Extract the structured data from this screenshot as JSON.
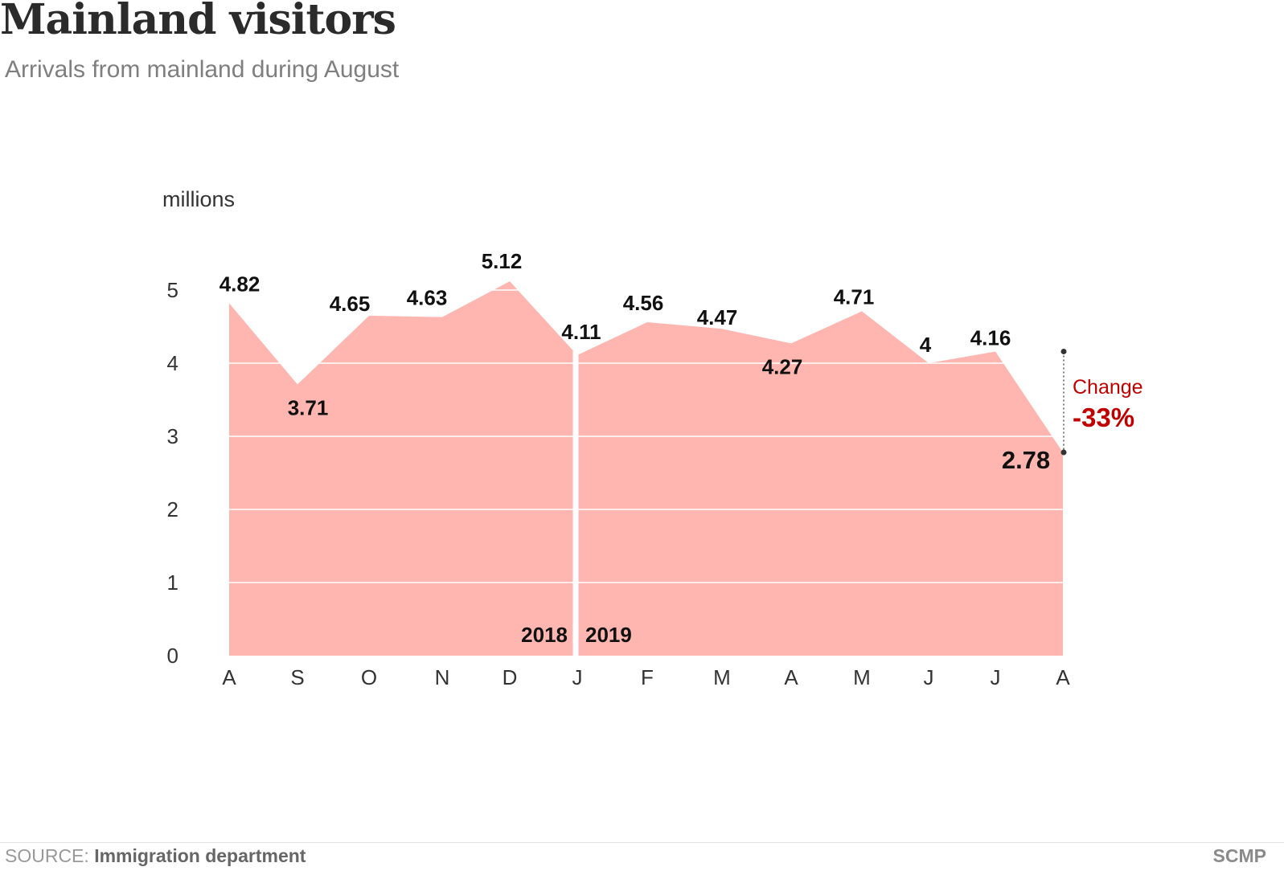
{
  "header": {
    "title": "Mainland visitors",
    "subtitle": "Arrivals from mainland during August"
  },
  "footer": {
    "source_label": "SOURCE:",
    "source_name": "Immigration department",
    "brand": "SCMP"
  },
  "colors": {
    "area_fill": "#ffb6b0",
    "grid": "#ffffff",
    "value_label": "#111111",
    "axis_text": "#333333",
    "change_color": "#c00000"
  },
  "chart_data": {
    "type": "area",
    "ylabel": "millions",
    "ylim": [
      0,
      5
    ],
    "yticks": [
      0,
      1,
      2,
      3,
      4,
      5
    ],
    "grid": true,
    "categories": [
      "A",
      "S",
      "O",
      "N",
      "D",
      "J",
      "F",
      "M",
      "A",
      "M",
      "J",
      "J",
      "A"
    ],
    "series": [
      {
        "values": [
          4.82,
          3.71,
          4.65,
          4.63,
          5.12,
          4.11,
          4.56,
          4.47,
          4.27,
          4.71,
          4,
          4.16,
          2.78
        ],
        "labels": [
          "4.82",
          "3.71",
          "4.65",
          "4.63",
          "5.12",
          "4.11",
          "4.56",
          "4.47",
          "4.27",
          "4.71",
          "4",
          "4.16",
          "2.78"
        ]
      }
    ],
    "year_labels": [
      "2018",
      "2019"
    ],
    "annotation": {
      "label": "Change",
      "value": "-33%",
      "from_value": 4.16,
      "to_value": 2.78
    }
  }
}
